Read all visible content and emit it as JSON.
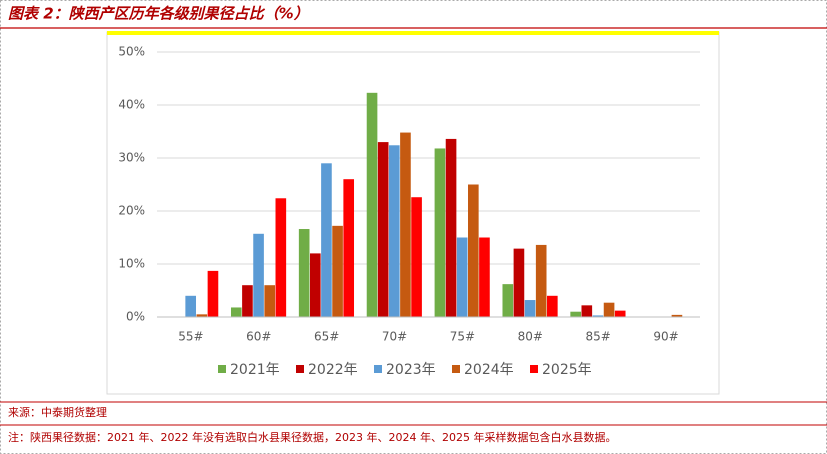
{
  "header": {
    "title": "图表 2：陕西产区历年各级别果径占比（%）"
  },
  "chart_data": {
    "type": "bar",
    "categories": [
      "55#",
      "60#",
      "65#",
      "70#",
      "75#",
      "80#",
      "85#",
      "90#"
    ],
    "series": [
      {
        "name": "2021年",
        "color": "#70ad47",
        "values": [
          0,
          1.8,
          16.6,
          42.3,
          31.8,
          6.2,
          1,
          0
        ]
      },
      {
        "name": "2022年",
        "color": "#c00000",
        "values": [
          0,
          6,
          12,
          33,
          33.6,
          12.9,
          2.2,
          0
        ]
      },
      {
        "name": "2023年",
        "color": "#5b9bd5",
        "values": [
          4,
          15.7,
          29,
          32.4,
          15,
          3.2,
          0.3,
          0
        ]
      },
      {
        "name": "2024年",
        "color": "#c55a11",
        "values": [
          0.5,
          6,
          17.2,
          34.8,
          25,
          13.6,
          2.7,
          0.4
        ]
      },
      {
        "name": "2025年",
        "color": "#ff0000",
        "values": [
          8.7,
          22.4,
          26,
          22.6,
          15,
          4,
          1.2,
          0
        ]
      }
    ],
    "ylim": [
      0,
      50
    ],
    "yticks": [
      {
        "value": 0,
        "label": "0%"
      },
      {
        "value": 10,
        "label": "10%"
      },
      {
        "value": 20,
        "label": "20%"
      },
      {
        "value": 30,
        "label": "30%"
      },
      {
        "value": 40,
        "label": "40%"
      },
      {
        "value": 50,
        "label": "50%"
      }
    ],
    "grid": true,
    "legend": "bottom"
  },
  "footer": {
    "source": "来源：中泰期货整理",
    "note": "注：陕西果径数据：2021 年、2022 年没有选取白水县果径数据，2023 年、2024 年、2025 年采样数据包含白水县数据。"
  }
}
